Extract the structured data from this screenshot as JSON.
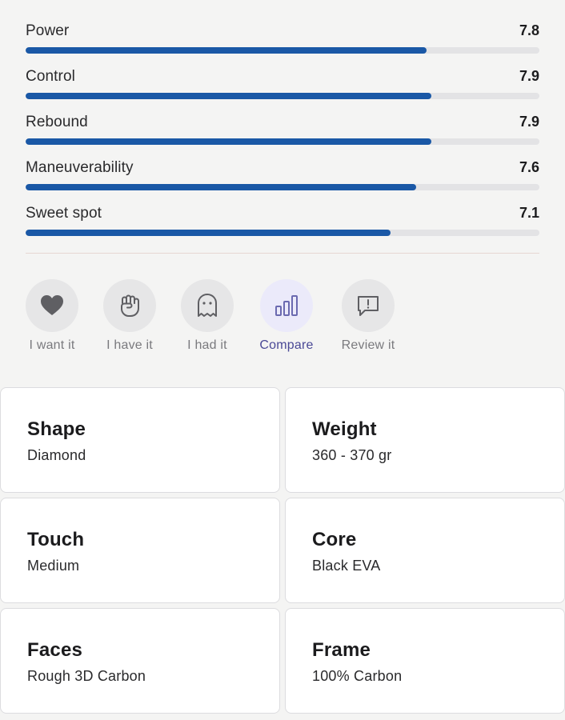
{
  "ratings": [
    {
      "label": "Power",
      "value": "7.8",
      "fraction": 0.78
    },
    {
      "label": "Control",
      "value": "7.9",
      "fraction": 0.79
    },
    {
      "label": "Rebound",
      "value": "7.9",
      "fraction": 0.79
    },
    {
      "label": "Maneuverability",
      "value": "7.6",
      "fraction": 0.76
    },
    {
      "label": "Sweet spot",
      "value": "7.1",
      "fraction": 0.71
    }
  ],
  "actions": [
    {
      "label": "I want it",
      "icon": "heart-icon",
      "active": false
    },
    {
      "label": "I have it",
      "icon": "fist-icon",
      "active": false
    },
    {
      "label": "I had it",
      "icon": "ghost-icon",
      "active": false
    },
    {
      "label": "Compare",
      "icon": "bar-chart-icon",
      "active": true
    },
    {
      "label": "Review it",
      "icon": "comment-icon",
      "active": false
    }
  ],
  "specs": [
    {
      "title": "Shape",
      "value": "Diamond"
    },
    {
      "title": "Weight",
      "value": "360 - 370 gr"
    },
    {
      "title": "Touch",
      "value": "Medium"
    },
    {
      "title": "Core",
      "value": "Black EVA"
    },
    {
      "title": "Faces",
      "value": "Rough 3D Carbon"
    },
    {
      "title": "Frame",
      "value": "100% Carbon"
    }
  ],
  "colors": {
    "accent": "#1a58a6",
    "active_label": "#4a4996",
    "icon_gray": "#5f5f63",
    "icon_active": "#6b6ab0"
  }
}
